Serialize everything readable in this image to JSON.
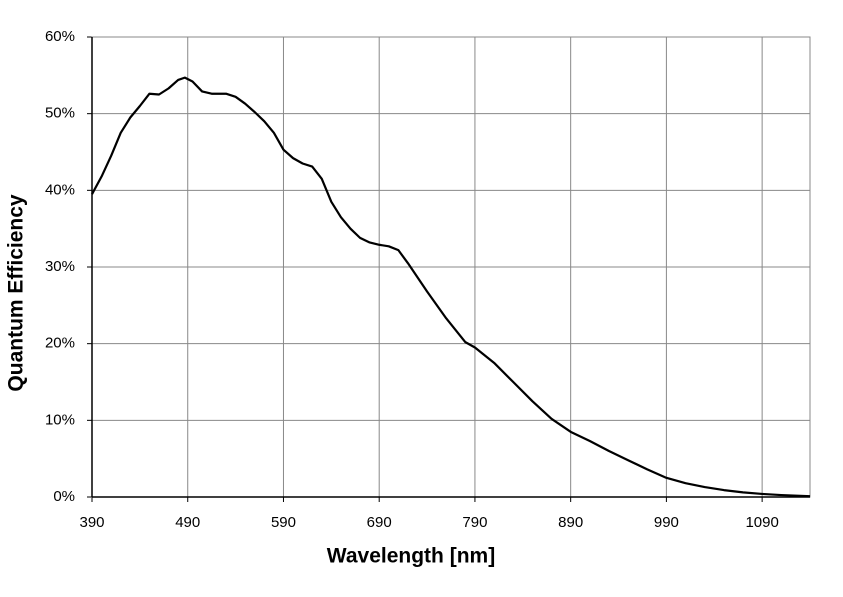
{
  "chart_data": {
    "type": "line",
    "x_label": "Wavelength [nm]",
    "y_label": "Quantum Efficiency",
    "xlim": [
      390,
      1140
    ],
    "xticks": [
      390,
      490,
      590,
      690,
      790,
      890,
      990,
      1090
    ],
    "ylim": [
      0,
      60
    ],
    "yticks": [
      {
        "value": 0,
        "label": "0%"
      },
      {
        "value": 10,
        "label": "10%"
      },
      {
        "value": 20,
        "label": "20%"
      },
      {
        "value": 30,
        "label": "30%"
      },
      {
        "value": 40,
        "label": "40%"
      },
      {
        "value": 50,
        "label": "50%"
      },
      {
        "value": 60,
        "label": "60%"
      }
    ],
    "grid": true,
    "x": [
      390,
      400,
      410,
      420,
      430,
      440,
      450,
      460,
      470,
      480,
      487,
      495,
      505,
      515,
      530,
      540,
      550,
      560,
      570,
      580,
      590,
      600,
      610,
      620,
      630,
      640,
      650,
      660,
      670,
      680,
      690,
      700,
      710,
      720,
      740,
      760,
      780,
      790,
      810,
      830,
      850,
      870,
      890,
      910,
      930,
      950,
      970,
      990,
      1010,
      1030,
      1050,
      1070,
      1090,
      1110,
      1140
    ],
    "series": [
      {
        "name": "Quantum Efficiency",
        "color": "#000000",
        "values": [
          39.5,
          41.8,
          44.5,
          47.5,
          49.5,
          51,
          52.6,
          52.5,
          53.3,
          54.4,
          54.7,
          54.2,
          52.9,
          52.6,
          52.6,
          52.2,
          51.3,
          50.2,
          49,
          47.5,
          45.3,
          44.2,
          43.5,
          43.1,
          41.5,
          38.5,
          36.5,
          35,
          33.8,
          33.2,
          32.9,
          32.7,
          32.2,
          30.5,
          26.8,
          23.3,
          20.2,
          19.5,
          17.5,
          15,
          12.5,
          10.2,
          8.5,
          7.3,
          6,
          4.8,
          3.6,
          2.5,
          1.8,
          1.3,
          0.9,
          0.6,
          0.4,
          0.25,
          0.1
        ]
      }
    ]
  }
}
